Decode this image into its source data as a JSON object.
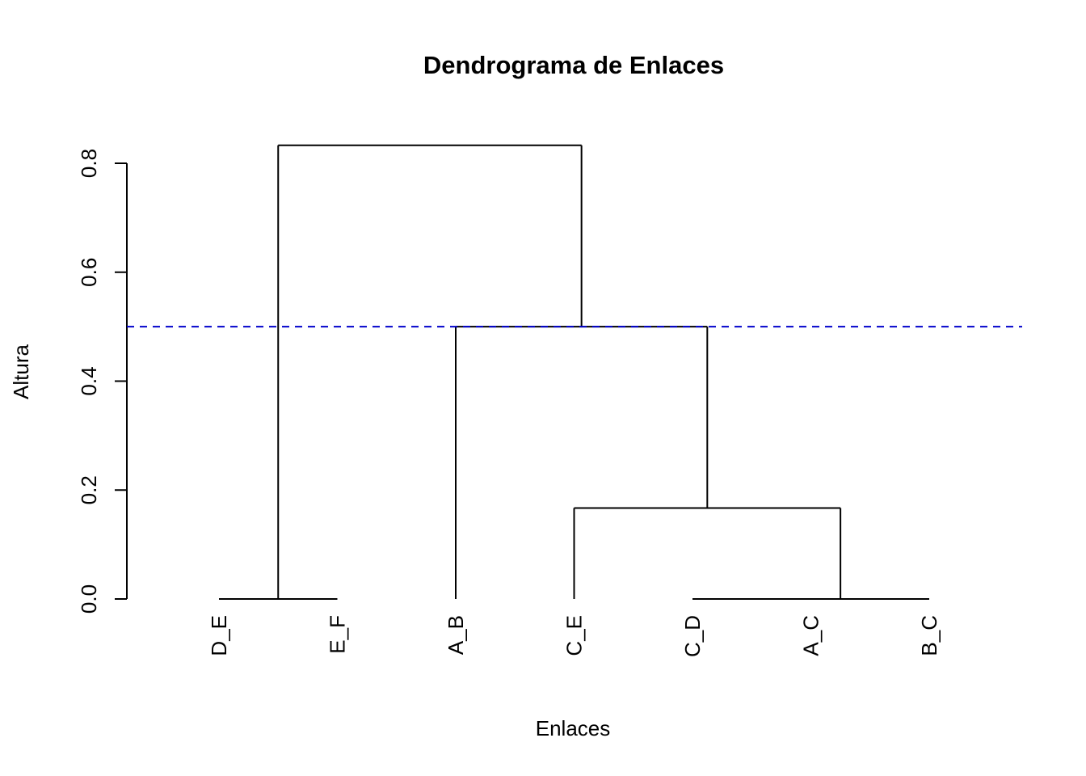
{
  "chart_data": {
    "type": "dendrogram",
    "title": "Dendrograma de Enlaces",
    "xlabel": "Enlaces",
    "ylabel": "Altura",
    "ylim": [
      0,
      0.8
    ],
    "yticks": [
      "0.0",
      "0.2",
      "0.4",
      "0.6",
      "0.8"
    ],
    "yticks_values": [
      0,
      0.2,
      0.4,
      0.6,
      0.8
    ],
    "leaves": [
      "D_E",
      "E_F",
      "A_B",
      "C_E",
      "C_D",
      "A_C",
      "B_C"
    ],
    "merges": [
      {
        "left": "D_E",
        "right": "E_F",
        "height": 0
      },
      {
        "left": "C_D",
        "right": "A_C",
        "height": 0
      },
      {
        "left": "C_D+A_C",
        "right": "B_C",
        "height": 0
      },
      {
        "left": "C_E",
        "right": "C_D+A_C+B_C",
        "height": 0.167
      },
      {
        "left": "A_B",
        "right": "C_E+C_D+A_C+B_C",
        "height": 0.5
      },
      {
        "left": "D_E+E_F",
        "right": "A_B+C_E+C_D+A_C+B_C",
        "height": 0.833
      }
    ],
    "cut_height": 0.5,
    "cut_color": "#0000cc",
    "line_color": "#000000",
    "grid": false
  }
}
